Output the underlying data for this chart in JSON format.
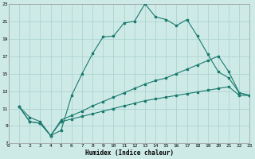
{
  "xlabel": "Humidex (Indice chaleur)",
  "bg_color": "#ceeae7",
  "grid_color": "#add4d0",
  "line_color": "#1a7a6e",
  "xlim": [
    0,
    23
  ],
  "ylim": [
    7,
    23
  ],
  "xticks": [
    0,
    1,
    2,
    3,
    4,
    5,
    6,
    7,
    8,
    9,
    10,
    11,
    12,
    13,
    14,
    15,
    16,
    17,
    18,
    19,
    20,
    21,
    22,
    23
  ],
  "yticks": [
    7,
    9,
    11,
    13,
    15,
    17,
    19,
    21,
    23
  ],
  "line1_x": [
    1,
    2,
    3,
    4,
    5,
    6,
    7,
    8,
    9,
    10,
    11,
    12,
    13,
    14,
    15,
    16,
    17,
    18,
    19,
    20,
    21,
    22,
    23
  ],
  "line1_y": [
    11.2,
    10.0,
    9.5,
    7.9,
    8.5,
    12.5,
    15.0,
    17.3,
    19.2,
    19.3,
    20.8,
    21.0,
    23.0,
    21.5,
    21.2,
    20.5,
    21.2,
    19.3,
    17.2,
    15.2,
    14.5,
    12.8,
    12.5
  ],
  "line2_x": [
    1,
    2,
    3,
    4,
    5,
    6,
    7,
    8,
    9,
    10,
    11,
    12,
    13,
    14,
    15,
    16,
    17,
    18,
    19,
    20,
    21,
    22,
    23
  ],
  "line2_y": [
    11.2,
    9.5,
    9.3,
    7.9,
    9.7,
    10.2,
    10.7,
    11.3,
    11.8,
    12.3,
    12.8,
    13.3,
    13.8,
    14.2,
    14.5,
    15.0,
    15.5,
    16.0,
    16.5,
    17.0,
    15.2,
    12.8,
    12.5
  ],
  "line3_x": [
    1,
    2,
    3,
    4,
    5,
    6,
    7,
    8,
    9,
    10,
    11,
    12,
    13,
    14,
    15,
    16,
    17,
    18,
    19,
    20,
    21,
    22,
    23
  ],
  "line3_y": [
    11.2,
    9.5,
    9.3,
    7.9,
    9.5,
    9.8,
    10.1,
    10.4,
    10.7,
    11.0,
    11.3,
    11.6,
    11.9,
    12.1,
    12.3,
    12.5,
    12.7,
    12.9,
    13.1,
    13.3,
    13.5,
    12.5,
    12.5
  ]
}
